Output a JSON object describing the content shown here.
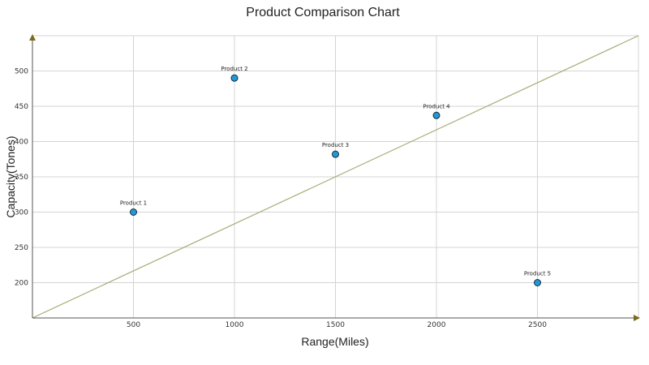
{
  "chart_data": {
    "type": "scatter",
    "title": "Product Comparison Chart",
    "xlabel": "Range(Miles)",
    "ylabel": "Capacity(Tones)",
    "xlim": [
      0,
      3000
    ],
    "ylim": [
      150,
      550
    ],
    "x_ticks": [
      "500",
      "1000",
      "1500",
      "2000",
      "2500"
    ],
    "y_ticks": [
      "200",
      "250",
      "300",
      "350",
      "400",
      "450",
      "500"
    ],
    "grid": true,
    "points": [
      {
        "label": "Product 1",
        "x": 500,
        "y": 300
      },
      {
        "label": "Product 2",
        "x": 1000,
        "y": 490
      },
      {
        "label": "Product 3",
        "x": 1500,
        "y": 382
      },
      {
        "label": "Product 4",
        "x": 2000,
        "y": 437
      },
      {
        "label": "Product 5",
        "x": 2500,
        "y": 200
      }
    ],
    "trendline": {
      "x": [
        0,
        3000
      ],
      "y": [
        150,
        550
      ]
    },
    "colors": {
      "point_fill": "#1f9ad6",
      "point_stroke": "#1a2a3a",
      "trendline": "#a9ab78",
      "axis_arrow": "#7a6a1a"
    }
  }
}
